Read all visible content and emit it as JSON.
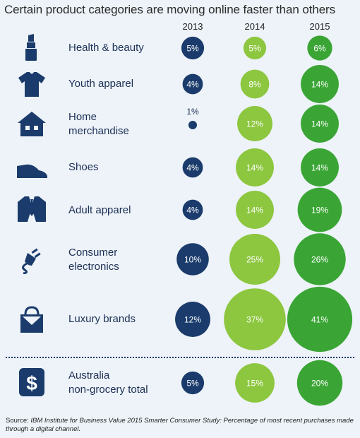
{
  "title": "Certain product categories are moving online faster than others",
  "source": {
    "prefix": "Source: ",
    "body": "IBM Institute for Business Value 2015 Smarter Consumer Study: Percentage of most recent purchases made through a digital channel."
  },
  "colors": {
    "y2013": "#1a3b6b",
    "y2014": "#8dc63f",
    "y2015": "#3aa535",
    "text": "#1c2f56",
    "icon": "#1a3b6b",
    "background": "#edf3f8"
  },
  "chart_data": {
    "type": "bubble-table",
    "title": "Certain product categories are moving online faster than others",
    "years": [
      "2013",
      "2014",
      "2015"
    ],
    "categories": [
      {
        "label_lines": [
          "Health & beauty"
        ],
        "icon": "lipstick-icon",
        "values": [
          5,
          5,
          6
        ]
      },
      {
        "label_lines": [
          "Youth apparel"
        ],
        "icon": "tshirt-icon",
        "values": [
          4,
          8,
          14
        ]
      },
      {
        "label_lines": [
          "Home",
          "merchandise"
        ],
        "icon": "house-icon",
        "values": [
          1,
          12,
          14
        ]
      },
      {
        "label_lines": [
          "Shoes"
        ],
        "icon": "shoe-icon",
        "values": [
          4,
          14,
          14
        ]
      },
      {
        "label_lines": [
          "Adult apparel"
        ],
        "icon": "suit-icon",
        "values": [
          4,
          14,
          19
        ]
      },
      {
        "label_lines": [
          "Consumer",
          "electronics"
        ],
        "icon": "plug-icon",
        "values": [
          10,
          25,
          26
        ]
      },
      {
        "label_lines": [
          "Luxury brands"
        ],
        "icon": "handbag-icon",
        "values": [
          12,
          37,
          41
        ]
      },
      {
        "label_lines": [
          "Australia",
          "non-grocery total"
        ],
        "icon": "dollar-icon",
        "values": [
          5,
          15,
          20
        ],
        "total": true
      }
    ],
    "value_suffix": "%"
  }
}
